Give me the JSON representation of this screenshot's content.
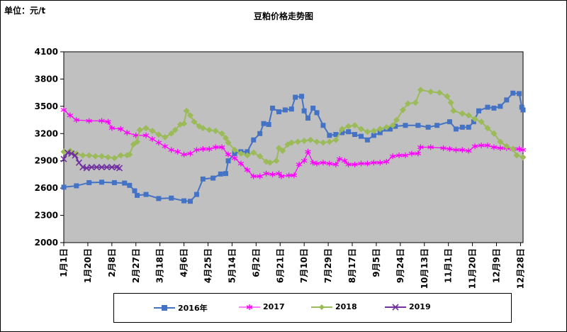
{
  "unit_label": "单位：元/t",
  "chart_data": {
    "type": "line",
    "title": "豆粕价格走势图",
    "ylim": [
      2000,
      4100
    ],
    "yticks": [
      2000,
      2300,
      2600,
      2900,
      3200,
      3500,
      3800,
      4100
    ],
    "grid": false,
    "background": "#c0c0c0",
    "legend_position": "bottom",
    "x_domain_days": 363,
    "xticks": [
      {
        "label": "1月1日",
        "day": 0
      },
      {
        "label": "1月20日",
        "day": 19
      },
      {
        "label": "2月8日",
        "day": 38
      },
      {
        "label": "2月27日",
        "day": 57
      },
      {
        "label": "3月18日",
        "day": 76
      },
      {
        "label": "4月6日",
        "day": 95
      },
      {
        "label": "4月25日",
        "day": 114
      },
      {
        "label": "5月14日",
        "day": 133
      },
      {
        "label": "6月2日",
        "day": 152
      },
      {
        "label": "6月21日",
        "day": 171
      },
      {
        "label": "7月10日",
        "day": 190
      },
      {
        "label": "7月29日",
        "day": 209
      },
      {
        "label": "8月17日",
        "day": 228
      },
      {
        "label": "9月5日",
        "day": 247
      },
      {
        "label": "9月24日",
        "day": 266
      },
      {
        "label": "10月13日",
        "day": 285
      },
      {
        "label": "11月1日",
        "day": 304
      },
      {
        "label": "11月20日",
        "day": 323
      },
      {
        "label": "12月9日",
        "day": 342
      },
      {
        "label": "12月28日",
        "day": 361
      }
    ],
    "series": [
      {
        "name": "2016年",
        "color": "#4472c4",
        "marker": "square",
        "points": [
          [
            0,
            2610
          ],
          [
            10,
            2625
          ],
          [
            20,
            2660
          ],
          [
            30,
            2665
          ],
          [
            40,
            2660
          ],
          [
            48,
            2655
          ],
          [
            52,
            2630
          ],
          [
            56,
            2570
          ],
          [
            58,
            2520
          ],
          [
            65,
            2530
          ],
          [
            75,
            2485
          ],
          [
            85,
            2490
          ],
          [
            95,
            2460
          ],
          [
            100,
            2455
          ],
          [
            105,
            2530
          ],
          [
            110,
            2700
          ],
          [
            118,
            2710
          ],
          [
            124,
            2755
          ],
          [
            128,
            2760
          ],
          [
            130,
            2900
          ],
          [
            135,
            2980
          ],
          [
            140,
            3000
          ],
          [
            145,
            3000
          ],
          [
            150,
            3130
          ],
          [
            155,
            3200
          ],
          [
            158,
            3310
          ],
          [
            162,
            3300
          ],
          [
            165,
            3480
          ],
          [
            170,
            3440
          ],
          [
            175,
            3460
          ],
          [
            180,
            3470
          ],
          [
            183,
            3600
          ],
          [
            188,
            3610
          ],
          [
            190,
            3450
          ],
          [
            193,
            3370
          ],
          [
            197,
            3480
          ],
          [
            200,
            3430
          ],
          [
            205,
            3290
          ],
          [
            210,
            3180
          ],
          [
            215,
            3190
          ],
          [
            220,
            3210
          ],
          [
            225,
            3220
          ],
          [
            230,
            3190
          ],
          [
            235,
            3170
          ],
          [
            240,
            3130
          ],
          [
            245,
            3180
          ],
          [
            250,
            3210
          ],
          [
            255,
            3250
          ],
          [
            258,
            3250
          ],
          [
            262,
            3280
          ],
          [
            270,
            3290
          ],
          [
            280,
            3290
          ],
          [
            288,
            3270
          ],
          [
            295,
            3290
          ],
          [
            305,
            3330
          ],
          [
            310,
            3250
          ],
          [
            315,
            3270
          ],
          [
            320,
            3270
          ],
          [
            324,
            3330
          ],
          [
            328,
            3450
          ],
          [
            335,
            3490
          ],
          [
            340,
            3480
          ],
          [
            345,
            3500
          ],
          [
            350,
            3570
          ],
          [
            355,
            3645
          ],
          [
            360,
            3640
          ],
          [
            362,
            3490
          ],
          [
            363,
            3460
          ]
        ]
      },
      {
        "name": "2017",
        "color": "#ff00ff",
        "marker": "star",
        "points": [
          [
            0,
            3460
          ],
          [
            5,
            3400
          ],
          [
            10,
            3350
          ],
          [
            20,
            3340
          ],
          [
            30,
            3340
          ],
          [
            35,
            3330
          ],
          [
            38,
            3260
          ],
          [
            45,
            3250
          ],
          [
            50,
            3210
          ],
          [
            57,
            3180
          ],
          [
            65,
            3180
          ],
          [
            70,
            3140
          ],
          [
            75,
            3100
          ],
          [
            80,
            3060
          ],
          [
            85,
            3020
          ],
          [
            90,
            3000
          ],
          [
            95,
            2970
          ],
          [
            100,
            2980
          ],
          [
            105,
            3020
          ],
          [
            110,
            3030
          ],
          [
            115,
            3030
          ],
          [
            120,
            3050
          ],
          [
            125,
            3050
          ],
          [
            130,
            2970
          ],
          [
            135,
            2930
          ],
          [
            140,
            2870
          ],
          [
            145,
            2800
          ],
          [
            150,
            2730
          ],
          [
            155,
            2730
          ],
          [
            160,
            2760
          ],
          [
            165,
            2750
          ],
          [
            170,
            2760
          ],
          [
            172,
            2730
          ],
          [
            178,
            2740
          ],
          [
            182,
            2740
          ],
          [
            186,
            2860
          ],
          [
            190,
            2900
          ],
          [
            193,
            3000
          ],
          [
            197,
            2880
          ],
          [
            200,
            2870
          ],
          [
            205,
            2880
          ],
          [
            210,
            2870
          ],
          [
            215,
            2860
          ],
          [
            218,
            2920
          ],
          [
            222,
            2900
          ],
          [
            225,
            2860
          ],
          [
            230,
            2860
          ],
          [
            235,
            2870
          ],
          [
            240,
            2870
          ],
          [
            245,
            2880
          ],
          [
            250,
            2880
          ],
          [
            255,
            2890
          ],
          [
            260,
            2950
          ],
          [
            265,
            2960
          ],
          [
            270,
            2960
          ],
          [
            275,
            2980
          ],
          [
            280,
            2980
          ],
          [
            282,
            3050
          ],
          [
            290,
            3050
          ],
          [
            300,
            3040
          ],
          [
            305,
            3030
          ],
          [
            310,
            3020
          ],
          [
            315,
            3020
          ],
          [
            320,
            3010
          ],
          [
            325,
            3060
          ],
          [
            330,
            3070
          ],
          [
            335,
            3070
          ],
          [
            340,
            3050
          ],
          [
            345,
            3040
          ],
          [
            350,
            3040
          ],
          [
            355,
            3030
          ],
          [
            360,
            3030
          ],
          [
            363,
            3020
          ]
        ]
      },
      {
        "name": "2018",
        "color": "#9bbb59",
        "marker": "diamond",
        "points": [
          [
            0,
            3000
          ],
          [
            5,
            3010
          ],
          [
            10,
            2980
          ],
          [
            15,
            2960
          ],
          [
            20,
            2960
          ],
          [
            25,
            2950
          ],
          [
            30,
            2950
          ],
          [
            35,
            2940
          ],
          [
            40,
            2930
          ],
          [
            45,
            2960
          ],
          [
            50,
            2960
          ],
          [
            52,
            2970
          ],
          [
            55,
            3080
          ],
          [
            58,
            3110
          ],
          [
            60,
            3240
          ],
          [
            65,
            3260
          ],
          [
            70,
            3230
          ],
          [
            75,
            3190
          ],
          [
            80,
            3160
          ],
          [
            85,
            3200
          ],
          [
            88,
            3240
          ],
          [
            92,
            3300
          ],
          [
            95,
            3310
          ],
          [
            97,
            3450
          ],
          [
            100,
            3400
          ],
          [
            103,
            3330
          ],
          [
            107,
            3280
          ],
          [
            110,
            3260
          ],
          [
            115,
            3240
          ],
          [
            120,
            3230
          ],
          [
            125,
            3200
          ],
          [
            128,
            3150
          ],
          [
            130,
            3100
          ],
          [
            135,
            3020
          ],
          [
            140,
            2980
          ],
          [
            145,
            2960
          ],
          [
            150,
            2990
          ],
          [
            155,
            2950
          ],
          [
            160,
            2890
          ],
          [
            163,
            2880
          ],
          [
            168,
            2900
          ],
          [
            170,
            3040
          ],
          [
            173,
            3010
          ],
          [
            177,
            3080
          ],
          [
            180,
            3100
          ],
          [
            185,
            3110
          ],
          [
            190,
            3120
          ],
          [
            195,
            3130
          ],
          [
            200,
            3110
          ],
          [
            205,
            3100
          ],
          [
            210,
            3110
          ],
          [
            215,
            3130
          ],
          [
            220,
            3250
          ],
          [
            225,
            3280
          ],
          [
            230,
            3290
          ],
          [
            235,
            3250
          ],
          [
            240,
            3220
          ],
          [
            245,
            3230
          ],
          [
            250,
            3250
          ],
          [
            255,
            3270
          ],
          [
            260,
            3290
          ],
          [
            263,
            3350
          ],
          [
            268,
            3460
          ],
          [
            272,
            3530
          ],
          [
            278,
            3540
          ],
          [
            282,
            3680
          ],
          [
            290,
            3660
          ],
          [
            297,
            3650
          ],
          [
            303,
            3610
          ],
          [
            306,
            3540
          ],
          [
            308,
            3450
          ],
          [
            315,
            3420
          ],
          [
            320,
            3400
          ],
          [
            325,
            3360
          ],
          [
            330,
            3330
          ],
          [
            335,
            3260
          ],
          [
            340,
            3200
          ],
          [
            345,
            3110
          ],
          [
            350,
            3060
          ],
          [
            355,
            3030
          ],
          [
            358,
            2960
          ],
          [
            363,
            2940
          ]
        ]
      },
      {
        "name": "2019",
        "color": "#7030a0",
        "marker": "x",
        "points": [
          [
            0,
            2920
          ],
          [
            3,
            2990
          ],
          [
            6,
            2980
          ],
          [
            9,
            2960
          ],
          [
            12,
            2880
          ],
          [
            15,
            2830
          ],
          [
            18,
            2820
          ],
          [
            22,
            2830
          ],
          [
            26,
            2830
          ],
          [
            30,
            2830
          ],
          [
            34,
            2830
          ],
          [
            38,
            2830
          ],
          [
            42,
            2830
          ],
          [
            44,
            2820
          ]
        ]
      }
    ]
  }
}
